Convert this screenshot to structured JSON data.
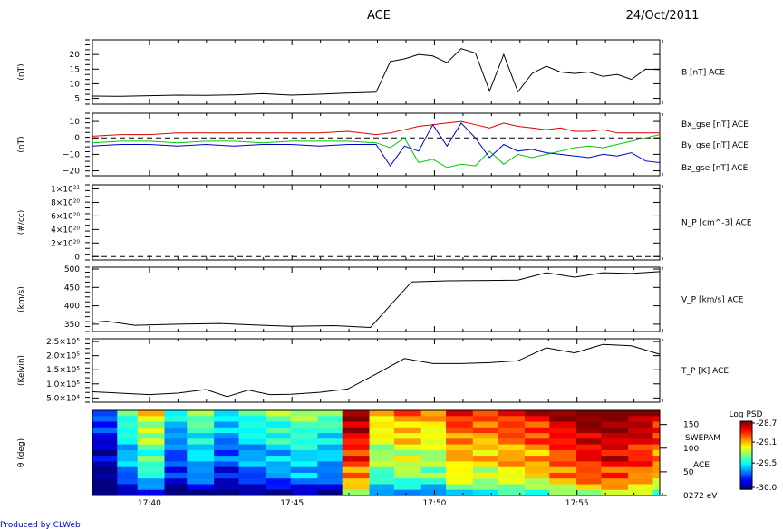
{
  "header": {
    "title": "ACE",
    "date": "24/Oct/2011"
  },
  "footer": {
    "produced_by": "Produced by CLWeb"
  },
  "x_axis": {
    "ticks": [
      "17:40",
      "17:45",
      "17:50",
      "17:55"
    ]
  },
  "chart_data": [
    {
      "type": "line",
      "name": "panel-b",
      "ylabel": "(nT)",
      "label": "B [nT] ACE",
      "ylim": [
        3,
        25
      ],
      "yticks": [
        "5",
        "10",
        "15",
        "20"
      ],
      "ytick_values": [
        5,
        10,
        15,
        20
      ],
      "x": [
        0,
        2,
        4,
        6,
        8,
        10,
        12,
        14,
        16,
        18,
        20,
        21,
        22,
        23,
        24,
        25,
        26,
        27,
        28,
        29,
        30,
        31,
        32,
        33,
        34,
        35,
        36,
        37,
        38,
        39,
        40
      ],
      "series": [
        {
          "color": "#000000",
          "values": [
            5.8,
            5.7,
            5.9,
            6.1,
            6.0,
            6.2,
            6.6,
            6.1,
            6.4,
            6.8,
            7.1,
            17.6,
            18.5,
            20.0,
            19.5,
            17.2,
            22.0,
            20.5,
            7.5,
            20.0,
            7.2,
            13.5,
            16.0,
            14.0,
            13.5,
            14.0,
            12.5,
            13.2,
            11.5,
            15.0,
            14.8
          ]
        }
      ]
    },
    {
      "type": "line",
      "name": "panel-b-components",
      "ylabel": "(nT)",
      "ylim": [
        -23,
        15
      ],
      "yticks": [
        "10",
        "0",
        "−10",
        "−20"
      ],
      "ytick_values": [
        10,
        0,
        -10,
        -20
      ],
      "zero_line": 0,
      "x": [
        0,
        2,
        4,
        6,
        8,
        10,
        12,
        14,
        16,
        18,
        20,
        21,
        22,
        23,
        24,
        25,
        26,
        27,
        28,
        29,
        30,
        31,
        32,
        33,
        34,
        35,
        36,
        37,
        38,
        39,
        40
      ],
      "series": [
        {
          "name": "Bx_gse [nT] ACE",
          "color": "#dd0000",
          "values": [
            1,
            2,
            2,
            3,
            3,
            3,
            3,
            3,
            3,
            4,
            2,
            3,
            5,
            7,
            8,
            9,
            10,
            8,
            6,
            9,
            7,
            6,
            5,
            6,
            4,
            4,
            5,
            3,
            3,
            3,
            3
          ]
        },
        {
          "name": "By_gse [nT] ACE",
          "color": "#00cc00",
          "values": [
            -3,
            -2,
            -2,
            -3,
            -2,
            -2,
            -3,
            -2,
            -2,
            -2,
            -3,
            -6,
            0,
            -15,
            -13,
            -18,
            -16,
            -17,
            -8,
            -16,
            -10,
            -12,
            -10,
            -8,
            -6,
            -5,
            -6,
            -4,
            -2,
            0,
            2
          ]
        },
        {
          "name": "Bz_gse [nT] ACE",
          "color": "#0000cc",
          "values": [
            -5,
            -4,
            -4,
            -5,
            -4,
            -5,
            -4,
            -4,
            -5,
            -4,
            -4,
            -17,
            -5,
            -8,
            8,
            -5,
            9,
            0,
            -12,
            -4,
            -8,
            -7,
            -9,
            -10,
            -11,
            -12,
            -10,
            -11,
            -9,
            -14,
            -15
          ]
        }
      ]
    },
    {
      "type": "line",
      "name": "panel-np",
      "ylabel": "(#/cc)",
      "label": "N_P [cm^-3] ACE",
      "ylim": [
        -5e+19,
        1.06e+21
      ],
      "yticks": [
        "0",
        "2×10²⁰",
        "4×10²⁰",
        "6×10²⁰",
        "8×10²⁰",
        "1×10²¹"
      ],
      "ytick_values": [
        0,
        2e+20,
        4e+20,
        6e+20,
        8e+20,
        1e+21
      ],
      "zero_line": 0,
      "series": []
    },
    {
      "type": "line",
      "name": "panel-vp",
      "ylabel": "(km/s)",
      "label": "V_P [km/s] ACE",
      "ylim": [
        330,
        505
      ],
      "yticks": [
        "350",
        "400",
        "450",
        "500"
      ],
      "ytick_values": [
        350,
        400,
        450,
        500
      ],
      "x": [
        0,
        1,
        3,
        6,
        9,
        12,
        14,
        17,
        19.6,
        22.5,
        25,
        28,
        30,
        32,
        34,
        36,
        38,
        40
      ],
      "series": [
        {
          "color": "#000000",
          "values": [
            355,
            358,
            347,
            350,
            352,
            347,
            344,
            346,
            341,
            465,
            468,
            469,
            470,
            490,
            478,
            490,
            488,
            493
          ]
        }
      ]
    },
    {
      "type": "line",
      "name": "panel-tp",
      "ylabel": "(Kelvin)",
      "label": "T_P [K] ACE",
      "ylim": [
        35000.0,
        260000.0
      ],
      "yticks": [
        "5.0×10⁴",
        "1.0×10⁵",
        "1.5×10⁵",
        "2.0×10⁵",
        "2.5×10⁵"
      ],
      "ytick_values": [
        50000.0,
        100000.0,
        150000.0,
        200000.0,
        250000.0
      ],
      "x": [
        0,
        4,
        6,
        8,
        9.5,
        11,
        12.5,
        14,
        16,
        18,
        20,
        22,
        24,
        26,
        28,
        30,
        32,
        34,
        36,
        38,
        40
      ],
      "series": [
        {
          "color": "#000000",
          "values": [
            72000.0,
            62000.0,
            67000.0,
            80000.0,
            55000.0,
            78000.0,
            62000.0,
            63000.0,
            70000.0,
            82000.0,
            135000.0,
            190000.0,
            172000.0,
            172000.0,
            175000.0,
            182000.0,
            228000.0,
            210000.0,
            240000.0,
            235000.0,
            205000.0
          ]
        }
      ]
    },
    {
      "type": "heatmap",
      "name": "panel-swepam",
      "ylabel": "θ (deg)",
      "side_labels": [
        "SWEPAM",
        "ACE"
      ],
      "yticks": [
        "150",
        "100",
        "50",
        "0272 eV"
      ],
      "ytick_values": [
        150,
        100,
        50,
        0
      ],
      "ylim": [
        0,
        180
      ],
      "colorbar": {
        "title": "Log PSD",
        "ticks": [
          "-28.7",
          "-29.1",
          "-29.5",
          "-30.0"
        ],
        "tick_values": [
          -28.7,
          -29.1,
          -29.5,
          -30.0
        ],
        "range": [
          -30.0,
          -28.7
        ]
      },
      "column_levels": [
        0.15,
        0.4,
        0.55,
        0.3,
        0.42,
        0.3,
        0.38,
        0.42,
        0.45,
        0.4,
        0.92,
        0.62,
        0.68,
        0.64,
        0.78,
        0.75,
        0.8,
        0.82,
        0.9,
        0.96,
        0.98,
        0.93,
        0.85
      ],
      "column_edges_minutes": [
        0,
        1.1,
        2,
        3.2,
        4.2,
        5.4,
        6.5,
        7.7,
        8.8,
        10,
        11.1,
        12.3,
        13.4,
        14.6,
        15.7,
        16.9,
        18.0,
        19.2,
        20.3,
        21.5,
        22.6,
        23.8,
        24.9,
        25.2
      ],
      "row_offsets": [
        0.1,
        0.05,
        0.0,
        0.02,
        -0.04,
        -0.02,
        -0.08,
        -0.12,
        -0.06,
        -0.1,
        -0.18,
        -0.14,
        -0.22,
        -0.3,
        -0.4
      ]
    }
  ]
}
